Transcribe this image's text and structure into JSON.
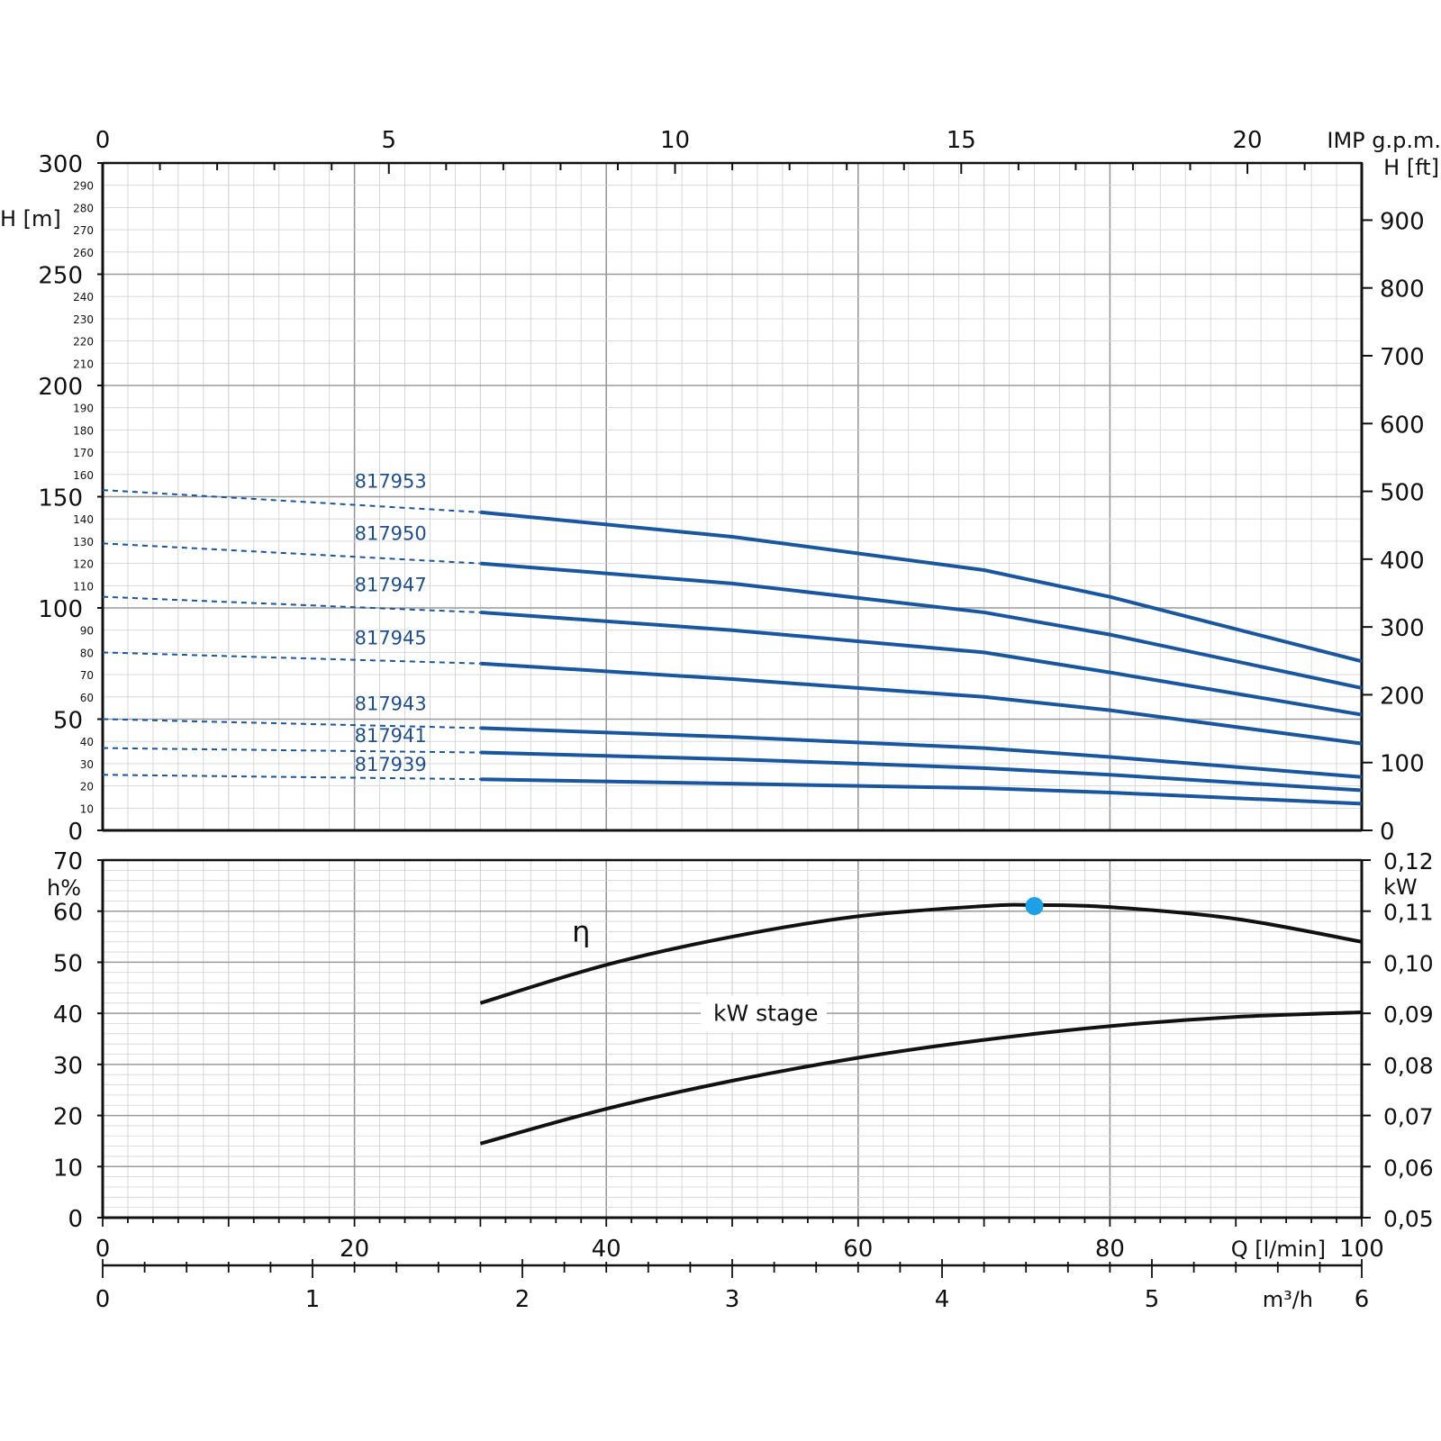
{
  "chart_data": [
    {
      "type": "line",
      "panel": "head",
      "x_unit": "l/min",
      "xlim": [
        0,
        100
      ],
      "ylim": [
        0,
        300
      ],
      "ylabel": "H [m]",
      "y2label": "H [ft]",
      "top_axis_label": "IMP g.p.m.",
      "top_axis_ticks": [
        "0",
        "5",
        "10",
        "15",
        "20"
      ],
      "y_major_ticks": [
        "0",
        "50",
        "100",
        "150",
        "200",
        "250",
        "300"
      ],
      "y_minor_ticks": [
        "10",
        "20",
        "30",
        "40",
        "60",
        "70",
        "80",
        "90",
        "110",
        "120",
        "130",
        "140",
        "160",
        "170",
        "180",
        "190",
        "210",
        "220",
        "230",
        "240",
        "260",
        "270",
        "280",
        "290"
      ],
      "y2_ticks": [
        "0",
        "100",
        "200",
        "300",
        "400",
        "500",
        "600",
        "700",
        "800",
        "900"
      ],
      "dashed_start_x": 0,
      "solid_start_x": 30,
      "series": [
        {
          "name": "817953",
          "x": [
            0,
            30,
            50,
            70,
            80,
            100
          ],
          "y": [
            153,
            143,
            132,
            117,
            105,
            76
          ]
        },
        {
          "name": "817950",
          "x": [
            0,
            30,
            50,
            70,
            80,
            100
          ],
          "y": [
            129,
            120,
            111,
            98,
            88,
            64
          ]
        },
        {
          "name": "817947",
          "x": [
            0,
            30,
            50,
            70,
            80,
            100
          ],
          "y": [
            105,
            98,
            90,
            80,
            71,
            52
          ]
        },
        {
          "name": "817945",
          "x": [
            0,
            30,
            50,
            70,
            80,
            100
          ],
          "y": [
            80,
            75,
            68,
            60,
            54,
            39
          ]
        },
        {
          "name": "817943",
          "x": [
            0,
            30,
            50,
            70,
            80,
            100
          ],
          "y": [
            50,
            46,
            42,
            37,
            33,
            24
          ]
        },
        {
          "name": "817941",
          "x": [
            0,
            30,
            50,
            70,
            80,
            100
          ],
          "y": [
            37,
            35,
            32,
            28,
            25,
            18
          ]
        },
        {
          "name": "817939",
          "x": [
            0,
            30,
            50,
            70,
            80,
            100
          ],
          "y": [
            25,
            23,
            21,
            19,
            17,
            12
          ]
        }
      ]
    },
    {
      "type": "line",
      "panel": "efficiency-power",
      "xlim": [
        0,
        100
      ],
      "ylim": [
        0,
        70
      ],
      "y2lim": [
        0.05,
        0.12
      ],
      "ylabel": "h%",
      "y2label": "kW",
      "xlabel": "Q [l/min]",
      "x_ticks": [
        "0",
        "20",
        "40",
        "60",
        "80",
        "100"
      ],
      "y_ticks": [
        "0",
        "10",
        "20",
        "30",
        "40",
        "50",
        "60",
        "70"
      ],
      "y2_ticks": [
        "0,05",
        "0,06",
        "0,07",
        "0,08",
        "0,09",
        "0,10",
        "0,11",
        "0,12"
      ],
      "m3h_label": "m³/h",
      "m3h_ticks": [
        "0",
        "1",
        "2",
        "3",
        "4",
        "5",
        "6"
      ],
      "series": [
        {
          "name": "η",
          "axis": "left",
          "x": [
            30,
            40,
            50,
            60,
            70,
            74,
            80,
            90,
            100
          ],
          "y": [
            42,
            49.5,
            55,
            59,
            61,
            61.2,
            60.8,
            58.5,
            54
          ]
        },
        {
          "name": "kW stage",
          "axis": "right",
          "x": [
            30,
            40,
            50,
            60,
            70,
            80,
            90,
            100
          ],
          "y": [
            0.0645,
            0.0713,
            0.0768,
            0.0813,
            0.0848,
            0.0875,
            0.0893,
            0.0902
          ]
        }
      ],
      "best_efficiency_point": {
        "x": 74,
        "y": 61,
        "color": "#1ea0e6"
      }
    }
  ],
  "colors": {
    "head_curve": "#1857a0",
    "model_label": "#1f4f8f",
    "curve_black": "#111111",
    "grid_major": "#9a9a9a",
    "grid_minor": "#d4d4d4"
  }
}
